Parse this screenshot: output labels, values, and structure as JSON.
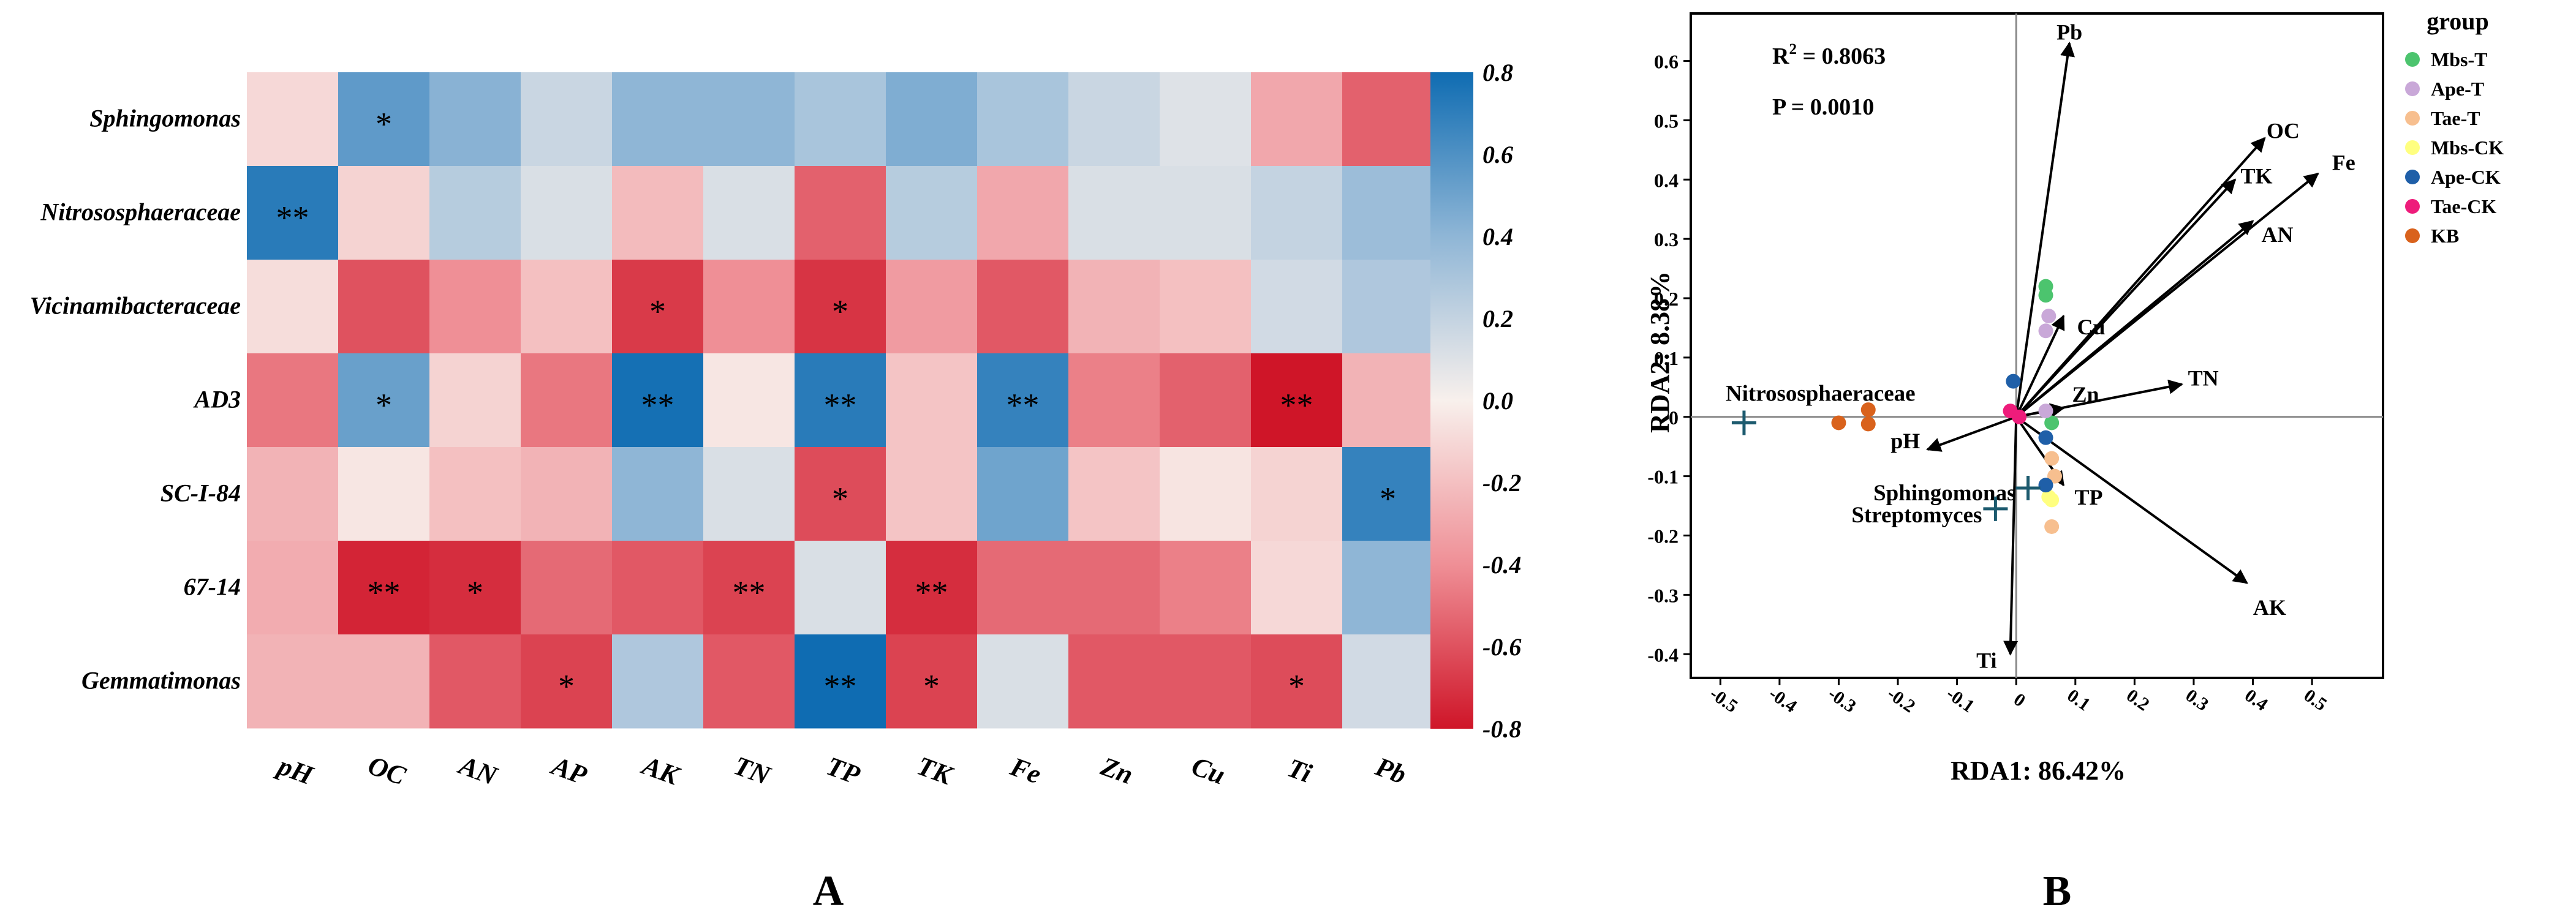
{
  "panels": {
    "a": "A",
    "b": "B"
  },
  "chart_data": [
    {
      "type": "heatmap",
      "panel": "A",
      "rows": [
        "Sphingomonas",
        "Nitrososphaeraceae",
        "Vicinamibacteraceae",
        "AD3",
        "SC-I-84",
        "67-14",
        "Gemmatimonas"
      ],
      "cols": [
        "pH",
        "OC",
        "AN",
        "AP",
        "AK",
        "TN",
        "TP",
        "TK",
        "Fe",
        "Zn",
        "Cu",
        "Ti",
        "Pb"
      ],
      "values": [
        [
          -0.1,
          0.55,
          0.42,
          0.18,
          0.4,
          0.4,
          0.3,
          0.45,
          0.3,
          0.18,
          0.1,
          -0.3,
          -0.55
        ],
        [
          0.72,
          -0.12,
          0.25,
          0.12,
          -0.22,
          0.12,
          -0.55,
          0.25,
          -0.3,
          0.12,
          0.12,
          0.2,
          0.35
        ],
        [
          -0.08,
          -0.6,
          -0.4,
          -0.2,
          -0.68,
          -0.4,
          -0.7,
          -0.35,
          -0.58,
          -0.25,
          -0.2,
          0.15,
          0.28
        ],
        [
          -0.48,
          0.52,
          -0.12,
          -0.48,
          0.78,
          -0.04,
          0.72,
          -0.18,
          0.68,
          -0.45,
          -0.55,
          -0.8,
          -0.25
        ],
        [
          -0.25,
          -0.04,
          -0.2,
          -0.25,
          0.4,
          0.12,
          -0.62,
          -0.18,
          0.5,
          -0.18,
          -0.05,
          -0.12,
          0.68
        ],
        [
          -0.28,
          -0.75,
          -0.72,
          -0.52,
          -0.58,
          -0.65,
          0.12,
          -0.72,
          -0.52,
          -0.52,
          -0.45,
          -0.1,
          0.4
        ],
        [
          -0.25,
          -0.25,
          -0.58,
          -0.65,
          0.28,
          -0.58,
          0.8,
          -0.65,
          0.12,
          -0.58,
          -0.58,
          -0.62,
          0.15
        ]
      ],
      "significance": [
        [
          "",
          "*",
          "",
          "",
          "",
          "",
          "",
          "",
          "",
          "",
          "",
          "",
          ""
        ],
        [
          "**",
          "",
          "",
          "",
          "",
          "",
          "",
          "",
          "",
          "",
          "",
          "",
          ""
        ],
        [
          "",
          "",
          "",
          "",
          "*",
          "",
          "*",
          "",
          "",
          "",
          "",
          "",
          ""
        ],
        [
          "",
          "*",
          "",
          "",
          "**",
          "",
          "**",
          "",
          "**",
          "",
          "",
          "**",
          ""
        ],
        [
          "",
          "",
          "",
          "",
          "",
          "",
          "*",
          "",
          "",
          "",
          "",
          "",
          "*"
        ],
        [
          "",
          "**",
          "*",
          "",
          "",
          "**",
          "",
          "**",
          "",
          "",
          "",
          "",
          ""
        ],
        [
          "",
          "",
          "",
          "*",
          "",
          "",
          "**",
          "*",
          "",
          "",
          "",
          "*",
          ""
        ]
      ],
      "colorbar": {
        "min": -0.8,
        "max": 0.8,
        "ticks": [
          "0.8",
          "0.6",
          "0.4",
          "0.2",
          "0.0",
          "-0.2",
          "-0.4",
          "-0.6",
          "-0.8"
        ]
      }
    },
    {
      "type": "scatter",
      "panel": "B",
      "xlabel": "RDA1: 86.42%",
      "ylabel": "RDA2: 8.38%",
      "xlim": [
        -0.55,
        0.62
      ],
      "ylim": [
        -0.44,
        0.68
      ],
      "xticks": [
        "-0.5",
        "-0.4",
        "-0.3",
        "-0.2",
        "-0.1",
        "0",
        "0.1",
        "0.2",
        "0.3",
        "0.4",
        "0.5"
      ],
      "yticks": [
        "0.6",
        "0.5",
        "0.4",
        "0.3",
        "0.2",
        "0.1",
        "0",
        "-0.1",
        "-0.2",
        "-0.3",
        "-0.4"
      ],
      "r2_label": "R",
      "r2_sup": "2",
      "r2_value": " = 0.8063",
      "p_label": "P = 0.0010",
      "legend_title": "group",
      "groups": [
        {
          "name": "Mbs-T",
          "color": "#4cc46e",
          "points": [
            [
              0.05,
              0.22
            ],
            [
              0.05,
              0.205
            ],
            [
              0.06,
              -0.01
            ]
          ]
        },
        {
          "name": "Ape-T",
          "color": "#c9a8d8",
          "points": [
            [
              0.055,
              0.17
            ],
            [
              0.05,
              0.145
            ],
            [
              0.05,
              0.01
            ]
          ]
        },
        {
          "name": "Tae-T",
          "color": "#f7bf8f",
          "points": [
            [
              0.06,
              -0.07
            ],
            [
              0.06,
              -0.185
            ],
            [
              0.065,
              -0.1
            ]
          ]
        },
        {
          "name": "Mbs-CK",
          "color": "#ffff80",
          "points": [
            [
              0.055,
              -0.135
            ],
            [
              0.06,
              -0.14
            ]
          ]
        },
        {
          "name": "Ape-CK",
          "color": "#1f5fa8",
          "points": [
            [
              -0.005,
              0.06
            ],
            [
              0.05,
              -0.035
            ],
            [
              0.05,
              -0.115
            ]
          ]
        },
        {
          "name": "Tae-CK",
          "color": "#ee1c7b",
          "points": [
            [
              -0.01,
              0.01
            ],
            [
              0.005,
              0.0
            ]
          ]
        },
        {
          "name": "KB",
          "color": "#d9621c",
          "points": [
            [
              -0.3,
              -0.01
            ],
            [
              -0.25,
              0.012
            ],
            [
              -0.25,
              -0.012
            ]
          ]
        }
      ],
      "vectors": [
        {
          "name": "Pb",
          "x": 0.09,
          "y": 0.63
        },
        {
          "name": "OC",
          "x": 0.42,
          "y": 0.47
        },
        {
          "name": "TK",
          "x": 0.37,
          "y": 0.4
        },
        {
          "name": "Fe",
          "x": 0.51,
          "y": 0.41
        },
        {
          "name": "AN",
          "x": 0.4,
          "y": 0.33
        },
        {
          "name": "Cu",
          "x": 0.08,
          "y": 0.17
        },
        {
          "name": "Zn",
          "x": 0.08,
          "y": 0.015
        },
        {
          "name": "TN",
          "x": 0.28,
          "y": 0.055
        },
        {
          "name": "pH",
          "x": -0.15,
          "y": -0.055
        },
        {
          "name": "TP",
          "x": 0.08,
          "y": -0.115
        },
        {
          "name": "AK",
          "x": 0.39,
          "y": -0.28
        },
        {
          "name": "Ti",
          "x": -0.01,
          "y": -0.4
        }
      ],
      "species": [
        {
          "name": "Nitrososphaeraceae",
          "x": -0.46,
          "y": -0.01
        },
        {
          "name": "Sphingomonas",
          "x": 0.02,
          "y": -0.12
        },
        {
          "name": "Streptomyces",
          "x": -0.035,
          "y": -0.155
        }
      ]
    }
  ]
}
